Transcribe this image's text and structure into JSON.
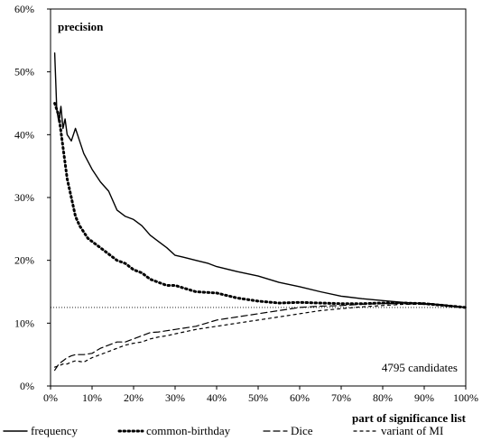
{
  "chart_data": {
    "type": "line",
    "ylabel": "precision",
    "xlabel": "part of significance list",
    "annotation": "4795 candidates",
    "xlim": [
      0,
      100
    ],
    "ylim": [
      0,
      60
    ],
    "x_ticks": [
      "0%",
      "10%",
      "20%",
      "30%",
      "40%",
      "50%",
      "60%",
      "70%",
      "80%",
      "90%",
      "100%"
    ],
    "y_ticks": [
      "0%",
      "10%",
      "20%",
      "30%",
      "40%",
      "50%",
      "60%"
    ],
    "baseline": 12.5,
    "grid": false,
    "legend_position": "bottom",
    "series": [
      {
        "name": "frequency",
        "style": "solid",
        "x": [
          1,
          1.5,
          2,
          2.5,
          3,
          3.5,
          4,
          5,
          6,
          7,
          8,
          10,
          12,
          14,
          16,
          18,
          20,
          22,
          24,
          26,
          28,
          30,
          32,
          35,
          38,
          40,
          45,
          50,
          55,
          60,
          65,
          70,
          75,
          80,
          85,
          90,
          95,
          100
        ],
        "y": [
          53,
          44,
          42,
          44.5,
          41,
          42.5,
          40,
          39,
          41,
          39,
          37,
          34.5,
          32.5,
          31,
          28,
          27,
          26.5,
          25.5,
          24,
          23,
          22,
          20.8,
          20.5,
          20,
          19.5,
          19,
          18.2,
          17.5,
          16.5,
          15.8,
          15,
          14.3,
          13.9,
          13.6,
          13.3,
          13.1,
          12.8,
          12.5
        ]
      },
      {
        "name": "common-birthday",
        "style": "dotted",
        "x": [
          1,
          2,
          3,
          4,
          5,
          6,
          7,
          8,
          9,
          10,
          12,
          14,
          16,
          18,
          20,
          22,
          24,
          26,
          28,
          30,
          35,
          40,
          45,
          50,
          55,
          60,
          65,
          70,
          75,
          80,
          85,
          90,
          95,
          100
        ],
        "y": [
          45,
          43,
          38,
          33,
          30,
          27,
          25.5,
          24.5,
          23.5,
          23,
          22,
          21,
          20,
          19.5,
          18.5,
          18,
          17,
          16.5,
          16,
          16,
          15,
          14.8,
          14,
          13.5,
          13.2,
          13.3,
          13.2,
          13.1,
          13.1,
          13.2,
          13.2,
          13.1,
          12.8,
          12.5
        ]
      },
      {
        "name": "Dice",
        "style": "dashed",
        "x": [
          1,
          2,
          3,
          4,
          5,
          6,
          8,
          10,
          12,
          14,
          16,
          18,
          20,
          22,
          24,
          26,
          28,
          30,
          35,
          40,
          45,
          50,
          55,
          60,
          65,
          70,
          75,
          80,
          85,
          90,
          95,
          100
        ],
        "y": [
          2.5,
          3.5,
          4,
          4.5,
          4.8,
          5,
          5,
          5.2,
          6,
          6.5,
          7,
          7,
          7.5,
          8,
          8.5,
          8.6,
          8.8,
          9,
          9.5,
          10.5,
          11,
          11.5,
          12,
          12.5,
          12.7,
          12.8,
          13,
          13.1,
          13.2,
          13.2,
          12.9,
          12.5
        ]
      },
      {
        "name": "variant of MI",
        "style": "dash-dot",
        "x": [
          1,
          2,
          3,
          4,
          5,
          6,
          8,
          10,
          12,
          14,
          16,
          18,
          20,
          22,
          24,
          26,
          28,
          30,
          35,
          40,
          45,
          50,
          55,
          60,
          65,
          70,
          75,
          80,
          85,
          90,
          95,
          100
        ],
        "y": [
          3,
          3.2,
          3.5,
          3.5,
          3.8,
          4,
          3.8,
          4.5,
          5,
          5.5,
          6,
          6.5,
          6.8,
          7,
          7.5,
          7.8,
          8,
          8.3,
          9,
          9.5,
          10,
          10.5,
          11,
          11.5,
          12,
          12.3,
          12.6,
          12.8,
          13,
          13,
          12.8,
          12.5
        ]
      }
    ]
  }
}
